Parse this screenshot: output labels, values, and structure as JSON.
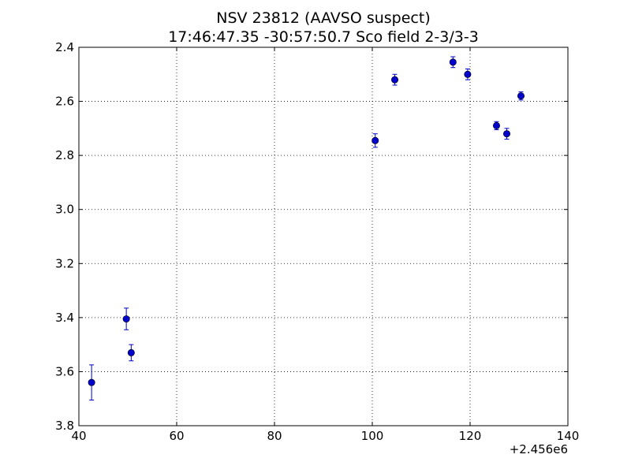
{
  "chart_data": {
    "type": "scatter",
    "title": "NSV 23812  (AAVSO suspect)",
    "subtitle": "17:46:47.35 -30:57:50.7 Sco field 2-3/3-3",
    "xlabel": "",
    "ylabel": "",
    "x_offset_label": "+2.456e6",
    "xlim": [
      40,
      140
    ],
    "ylim": [
      2.4,
      3.8
    ],
    "y_inverted": true,
    "grid": true,
    "x_ticks": [
      "40",
      "60",
      "80",
      "100",
      "120",
      "140"
    ],
    "y_ticks": [
      "2.4",
      "2.6",
      "2.8",
      "3.0",
      "3.2",
      "3.4",
      "3.6",
      "3.8"
    ],
    "marker_color": "#0000cc",
    "points": [
      {
        "x": 42.6,
        "y": 3.64,
        "err": 0.065
      },
      {
        "x": 49.7,
        "y": 3.405,
        "err": 0.04
      },
      {
        "x": 50.7,
        "y": 3.53,
        "err": 0.03
      },
      {
        "x": 100.6,
        "y": 2.745,
        "err": 0.025
      },
      {
        "x": 104.6,
        "y": 2.52,
        "err": 0.02
      },
      {
        "x": 116.5,
        "y": 2.455,
        "err": 0.02
      },
      {
        "x": 119.5,
        "y": 2.5,
        "err": 0.02
      },
      {
        "x": 125.4,
        "y": 2.69,
        "err": 0.015
      },
      {
        "x": 127.5,
        "y": 2.72,
        "err": 0.02
      },
      {
        "x": 130.4,
        "y": 2.58,
        "err": 0.015
      }
    ]
  }
}
